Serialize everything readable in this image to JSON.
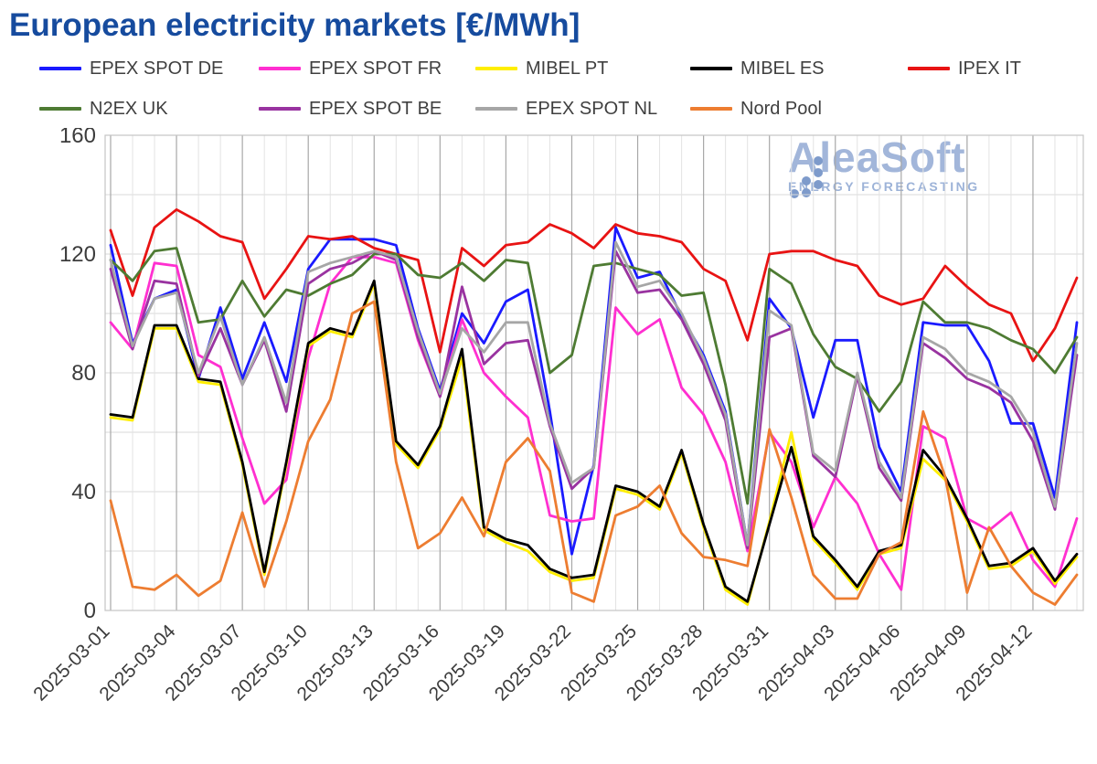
{
  "title": "European electricity markets [€/MWh]",
  "watermark": {
    "name": "AleaSoft",
    "tagline": "ENERGY FORECASTING"
  },
  "chart_data": {
    "type": "line",
    "unit": "€/MWh",
    "ylim": [
      0,
      160
    ],
    "yticks": [
      0,
      40,
      80,
      120,
      160
    ],
    "grid": true,
    "legend_position": "top",
    "x": [
      "2025-03-01",
      "2025-03-02",
      "2025-03-03",
      "2025-03-04",
      "2025-03-05",
      "2025-03-06",
      "2025-03-07",
      "2025-03-08",
      "2025-03-09",
      "2025-03-10",
      "2025-03-11",
      "2025-03-12",
      "2025-03-13",
      "2025-03-14",
      "2025-03-15",
      "2025-03-16",
      "2025-03-17",
      "2025-03-18",
      "2025-03-19",
      "2025-03-20",
      "2025-03-21",
      "2025-03-22",
      "2025-03-23",
      "2025-03-24",
      "2025-03-25",
      "2025-03-26",
      "2025-03-27",
      "2025-03-28",
      "2025-03-29",
      "2025-03-30",
      "2025-03-31",
      "2025-04-01",
      "2025-04-02",
      "2025-04-03",
      "2025-04-04",
      "2025-04-05",
      "2025-04-06",
      "2025-04-07",
      "2025-04-08",
      "2025-04-09",
      "2025-04-10",
      "2025-04-11",
      "2025-04-12",
      "2025-04-13",
      "2025-04-14"
    ],
    "x_tick_labels": [
      "2025-03-01",
      "2025-03-04",
      "2025-03-07",
      "2025-03-10",
      "2025-03-13",
      "2025-03-16",
      "2025-03-19",
      "2025-03-22",
      "2025-03-25",
      "2025-03-28",
      "2025-03-31",
      "2025-04-03",
      "2025-04-06",
      "2025-04-09",
      "2025-04-12"
    ],
    "series": [
      {
        "name": "EPEX SPOT DE",
        "color": "#1A1AFF",
        "values": [
          123,
          90,
          105,
          108,
          78,
          102,
          78,
          97,
          77,
          115,
          125,
          125,
          125,
          123,
          95,
          74,
          100,
          90,
          104,
          108,
          67,
          19,
          49,
          129,
          112,
          114,
          99,
          86,
          67,
          22,
          105,
          95,
          65,
          91,
          91,
          55,
          40,
          97,
          96,
          96,
          84,
          63,
          63,
          38,
          97
        ]
      },
      {
        "name": "EPEX SPOT FR",
        "color": "#FF2FD0",
        "values": [
          97,
          88,
          117,
          116,
          86,
          82,
          58,
          36,
          44,
          85,
          110,
          119,
          119,
          117,
          91,
          72,
          98,
          80,
          72,
          65,
          32,
          30,
          31,
          102,
          93,
          98,
          75,
          66,
          50,
          20,
          60,
          50,
          28,
          45,
          36,
          19,
          7,
          62,
          58,
          31,
          27,
          33,
          17,
          8,
          31
        ]
      },
      {
        "name": "MIBEL PT",
        "color": "#FFEE00",
        "values": [
          65,
          64,
          95,
          95,
          77,
          76,
          49,
          12,
          49,
          89,
          94,
          92,
          110,
          56,
          48,
          61,
          85,
          27,
          23,
          20,
          13,
          10,
          11,
          41,
          39,
          34,
          53,
          28,
          7,
          2,
          30,
          60,
          24,
          16,
          7,
          19,
          21,
          51,
          44,
          30,
          14,
          15,
          20,
          9,
          18
        ]
      },
      {
        "name": "MIBEL ES",
        "color": "#000000",
        "values": [
          66,
          65,
          96,
          96,
          78,
          77,
          50,
          13,
          50,
          90,
          95,
          93,
          111,
          57,
          49,
          62,
          88,
          28,
          24,
          22,
          14,
          11,
          12,
          42,
          40,
          35,
          54,
          29,
          8,
          3,
          29,
          55,
          25,
          17,
          8,
          20,
          22,
          54,
          45,
          31,
          15,
          16,
          21,
          10,
          19
        ]
      },
      {
        "name": "IPEX IT",
        "color": "#E81313",
        "values": [
          128,
          106,
          129,
          135,
          131,
          126,
          124,
          105,
          115,
          126,
          125,
          126,
          122,
          120,
          118,
          87,
          122,
          116,
          123,
          124,
          130,
          127,
          122,
          130,
          127,
          126,
          124,
          115,
          111,
          91,
          120,
          121,
          121,
          118,
          116,
          106,
          103,
          105,
          116,
          109,
          103,
          100,
          84,
          95,
          112
        ]
      },
      {
        "name": "N2EX UK",
        "color": "#4E7B33",
        "values": [
          118,
          111,
          121,
          122,
          97,
          98,
          111,
          99,
          108,
          106,
          110,
          113,
          120,
          120,
          113,
          112,
          117,
          111,
          118,
          117,
          80,
          86,
          116,
          117,
          115,
          113,
          106,
          107,
          76,
          36,
          115,
          110,
          93,
          82,
          78,
          67,
          77,
          104,
          97,
          97,
          95,
          91,
          88,
          80,
          92
        ]
      },
      {
        "name": "EPEX SPOT BE",
        "color": "#9933A0",
        "values": [
          115,
          88,
          111,
          110,
          79,
          95,
          76,
          91,
          67,
          110,
          115,
          117,
          121,
          118,
          92,
          72,
          109,
          83,
          90,
          91,
          62,
          41,
          48,
          121,
          107,
          108,
          98,
          83,
          64,
          21,
          92,
          95,
          52,
          45,
          79,
          48,
          37,
          90,
          85,
          78,
          75,
          70,
          57,
          34,
          86
        ]
      },
      {
        "name": "EPEX SPOT NL",
        "color": "#A6A6A6",
        "values": [
          118,
          89,
          105,
          107,
          80,
          99,
          76,
          92,
          70,
          114,
          117,
          119,
          121,
          119,
          94,
          73,
          95,
          87,
          97,
          97,
          63,
          43,
          48,
          124,
          109,
          111,
          100,
          85,
          66,
          22,
          101,
          96,
          53,
          47,
          80,
          50,
          38,
          92,
          88,
          80,
          77,
          72,
          60,
          35,
          90
        ]
      },
      {
        "name": "Nord Pool",
        "color": "#ED7D31",
        "values": [
          37,
          8,
          7,
          12,
          5,
          10,
          33,
          8,
          30,
          57,
          71,
          100,
          104,
          50,
          21,
          26,
          38,
          25,
          50,
          58,
          47,
          6,
          3,
          32,
          35,
          42,
          26,
          18,
          17,
          15,
          61,
          38,
          12,
          4,
          4,
          19,
          23,
          67,
          45,
          6,
          28,
          15,
          6,
          2,
          12
        ]
      }
    ]
  }
}
